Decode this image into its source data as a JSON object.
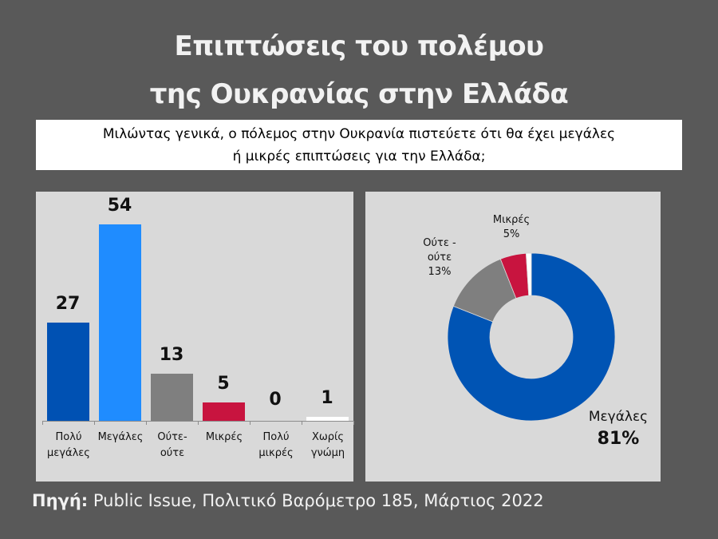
{
  "title": {
    "line1": "Επιπτώσεις του πολέμου",
    "line2": "της Ουκρανίας στην Ελλάδα"
  },
  "question": {
    "line1": "Μιλώντας γενικά, ο πόλεμος στην Ουκρανία πιστεύετε ότι θα έχει μεγάλες",
    "line2": "ή μικρές επιπτώσεις για την Ελλάδα;"
  },
  "colors": {
    "background": "#595959",
    "panel": "#d9d9d9",
    "very_large": "#0051b3",
    "large": "#1f8cff",
    "neither": "#7f7f7f",
    "small": "#c8143f",
    "very_small": "#d9d9d9",
    "no_opinion": "#ffffff",
    "donut_large": "#0054b4"
  },
  "chart_data": [
    {
      "type": "bar",
      "title": "",
      "xlabel": "",
      "ylabel": "",
      "categories": [
        "Πολύ μεγάλες",
        "Μεγάλες",
        "Ούτε-ούτε",
        "Μικρές",
        "Πολύ μικρές",
        "Χωρίς γνώμη"
      ],
      "category_lines": [
        [
          "Πολύ",
          "μεγάλες"
        ],
        [
          "Μεγάλες",
          ""
        ],
        [
          "Ούτε-",
          "ούτε"
        ],
        [
          "Μικρές",
          ""
        ],
        [
          "Πολύ",
          "μικρές"
        ],
        [
          "Χωρίς",
          "γνώμη"
        ]
      ],
      "values": [
        27,
        54,
        13,
        5,
        0,
        1
      ],
      "value_labels": [
        "27",
        "54",
        "13",
        "5",
        "0",
        "1"
      ],
      "colors": [
        "#0051b3",
        "#1f8cff",
        "#7f7f7f",
        "#c8143f",
        "#d9d9d9",
        "#ffffff"
      ],
      "ylim": [
        0,
        54
      ],
      "grid": false,
      "legend": "none"
    },
    {
      "type": "pie",
      "subtype": "donut",
      "labels": [
        "Μεγάλες",
        "Ούτε - ούτε",
        "Μικρές",
        "Χωρίς γνώμη"
      ],
      "values": [
        81,
        13,
        5,
        1
      ],
      "value_labels": [
        "81%",
        "13%",
        "5%",
        ""
      ],
      "colors": [
        "#0054b4",
        "#7f7f7f",
        "#c8143f",
        "#ffffff"
      ],
      "start_angle_deg": 0,
      "direction": "clockwise",
      "legend": "none"
    }
  ],
  "bar_chart": {
    "bars": [
      {
        "label1": "Πολύ",
        "label2": "μεγάλες",
        "value": "27"
      },
      {
        "label1": "Μεγάλες",
        "label2": "",
        "value": "54"
      },
      {
        "label1": "Ούτε-",
        "label2": "ούτε",
        "value": "13"
      },
      {
        "label1": "Μικρές",
        "label2": "",
        "value": "5"
      },
      {
        "label1": "Πολύ",
        "label2": "μικρές",
        "value": "0"
      },
      {
        "label1": "Χωρίς",
        "label2": "γνώμη",
        "value": "1"
      }
    ]
  },
  "donut_chart": {
    "large": {
      "label": "Μεγάλες",
      "value": "81%"
    },
    "neither": {
      "label1": "Ούτε -",
      "label2": "ούτε",
      "value": "13%"
    },
    "small": {
      "label": "Μικρές",
      "value": "5%"
    }
  },
  "source": {
    "prefix": "Πηγή:",
    "text": " Public Issue, Πολιτικό Βαρόμετρο 185, Μάρτιος 2022"
  }
}
